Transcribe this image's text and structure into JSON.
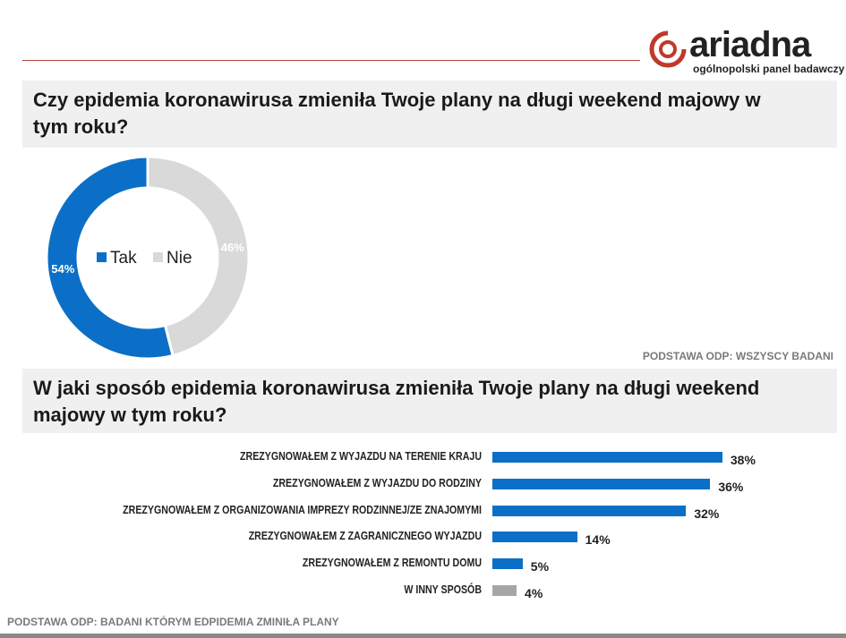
{
  "logo": {
    "name": "ariadna",
    "tagline": "ogólnopolski panel badawczy",
    "color": "#c0392b"
  },
  "question1": "Czy epidemia koronawirusa zmieniła Twoje plany na długi weekend majowy w tym roku?",
  "basis1": "PODSTAWA ODP: WSZYSCY BADANI",
  "question2": "W jaki sposób epidemia koronawirusa zmieniła Twoje plany na długi weekend majowy w tym roku?",
  "basis2": "PODSTAWA ODP: BADANI KTÓRYM EDPIDEMIA ZMINIŁA PLANY",
  "chart_data": [
    {
      "type": "pie",
      "donut": true,
      "legend": "center",
      "slices": [
        {
          "label": "Tak",
          "value": 54,
          "data_label": "54%",
          "color": "#0b6fc7"
        },
        {
          "label": "Nie",
          "value": 46,
          "data_label": "46%",
          "color": "#d9d9d9"
        }
      ]
    },
    {
      "type": "bar",
      "orientation": "horizontal",
      "categories": [
        "ZREZYGNOWAŁEM Z WYJAZDU NA TERENIE KRAJU",
        "ZREZYGNOWAŁEM Z WYJAZDU DO RODZINY",
        "ZREZYGNOWAŁEM Z ORGANIZOWANIA IMPREZY RODZINNEJ/ZE ZNAJOMYMI",
        "ZREZYGNOWAŁEM Z ZAGRANICZNEGO WYJAZDU",
        "ZREZYGNOWAŁEM Z REMONTU DOMU",
        "W INNY SPOSÓB"
      ],
      "values": [
        38,
        36,
        32,
        14,
        5,
        4
      ],
      "data_labels": [
        "38%",
        "36%",
        "32%",
        "14%",
        "5%",
        "4%"
      ],
      "colors": [
        "#0b6fc7",
        "#0b6fc7",
        "#0b6fc7",
        "#0b6fc7",
        "#0b6fc7",
        "#a6a6a6"
      ]
    }
  ]
}
